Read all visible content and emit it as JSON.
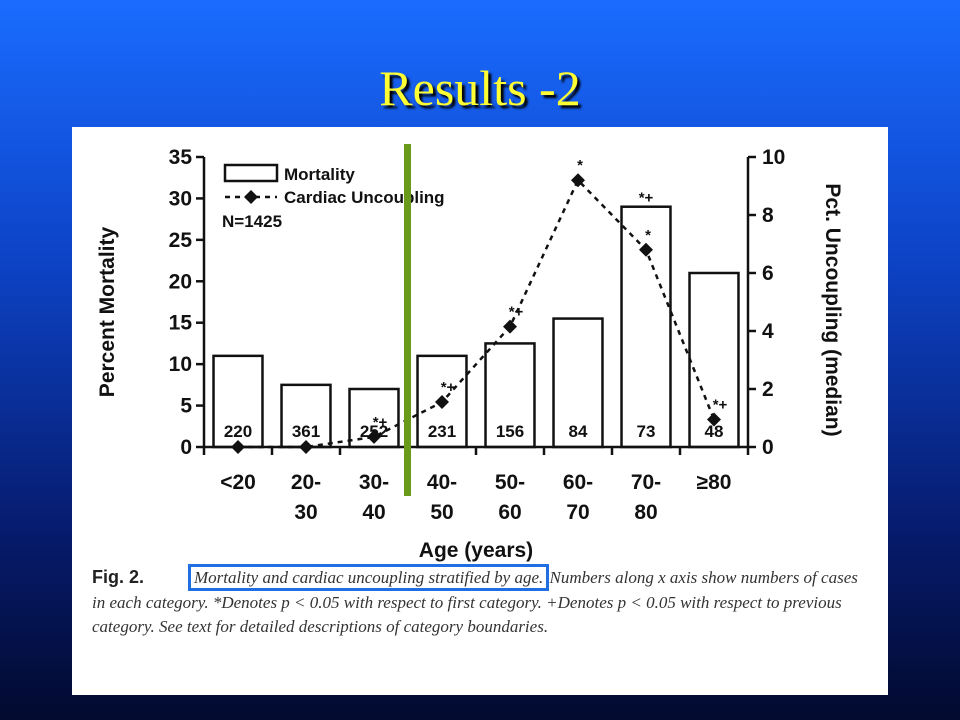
{
  "slide": {
    "title": "Results -2",
    "title_color": "#ffff33",
    "marker_color": "#6a9a1a"
  },
  "chart_data": {
    "type": "bar",
    "categories": [
      [
        "<20"
      ],
      [
        "20-",
        "30"
      ],
      [
        "30-",
        "40"
      ],
      [
        "40-",
        "50"
      ],
      [
        "50-",
        "60"
      ],
      [
        "60-",
        "70"
      ],
      [
        "70-",
        "80"
      ],
      [
        "≥80"
      ]
    ],
    "xlabel": "Age (years)",
    "ylabel_left": "Percent Mortality",
    "ylabel_right": "Pct. Uncoupling (median)",
    "ylim_left": [
      0,
      35
    ],
    "yticks_left": [
      0,
      5,
      10,
      15,
      20,
      25,
      30,
      35
    ],
    "ylim_right": [
      0,
      10
    ],
    "yticks_right": [
      0,
      2,
      4,
      6,
      8,
      10
    ],
    "legend": {
      "bar_label": "Mortality",
      "line_label": "Cardiac Uncoupling",
      "note": "N=1425",
      "placement": "top-left"
    },
    "series": [
      {
        "name": "Mortality",
        "type": "bar",
        "axis": "left",
        "values": [
          11,
          7.5,
          7,
          11,
          12.5,
          15.5,
          29,
          21
        ]
      },
      {
        "name": "Cardiac Uncoupling",
        "type": "line",
        "axis": "right",
        "values": [
          0,
          0,
          0.35,
          1.55,
          4.15,
          9.2,
          6.8,
          0.95
        ],
        "significance": [
          "",
          "",
          "*+",
          "*+",
          "*+",
          "*",
          "*",
          "*+"
        ]
      }
    ],
    "bar_top_labels": [
      "",
      "",
      "",
      "",
      "",
      "",
      "*+",
      ""
    ],
    "counts": [
      "220",
      "361",
      "252",
      "231",
      "156",
      "84",
      "73",
      "48"
    ],
    "grid": false
  },
  "caption": {
    "label": "Fig. 2.",
    "highlighted": "Mortality and cardiac uncoupling stratified by age.",
    "rest": " Numbers along x axis show numbers of cases in each category. *Denotes p < 0.05 with respect to first category. +Denotes p < 0.05 with respect to previous category. See text for detailed descriptions of category boundaries.",
    "highlight_color": "#1f6fe0"
  }
}
